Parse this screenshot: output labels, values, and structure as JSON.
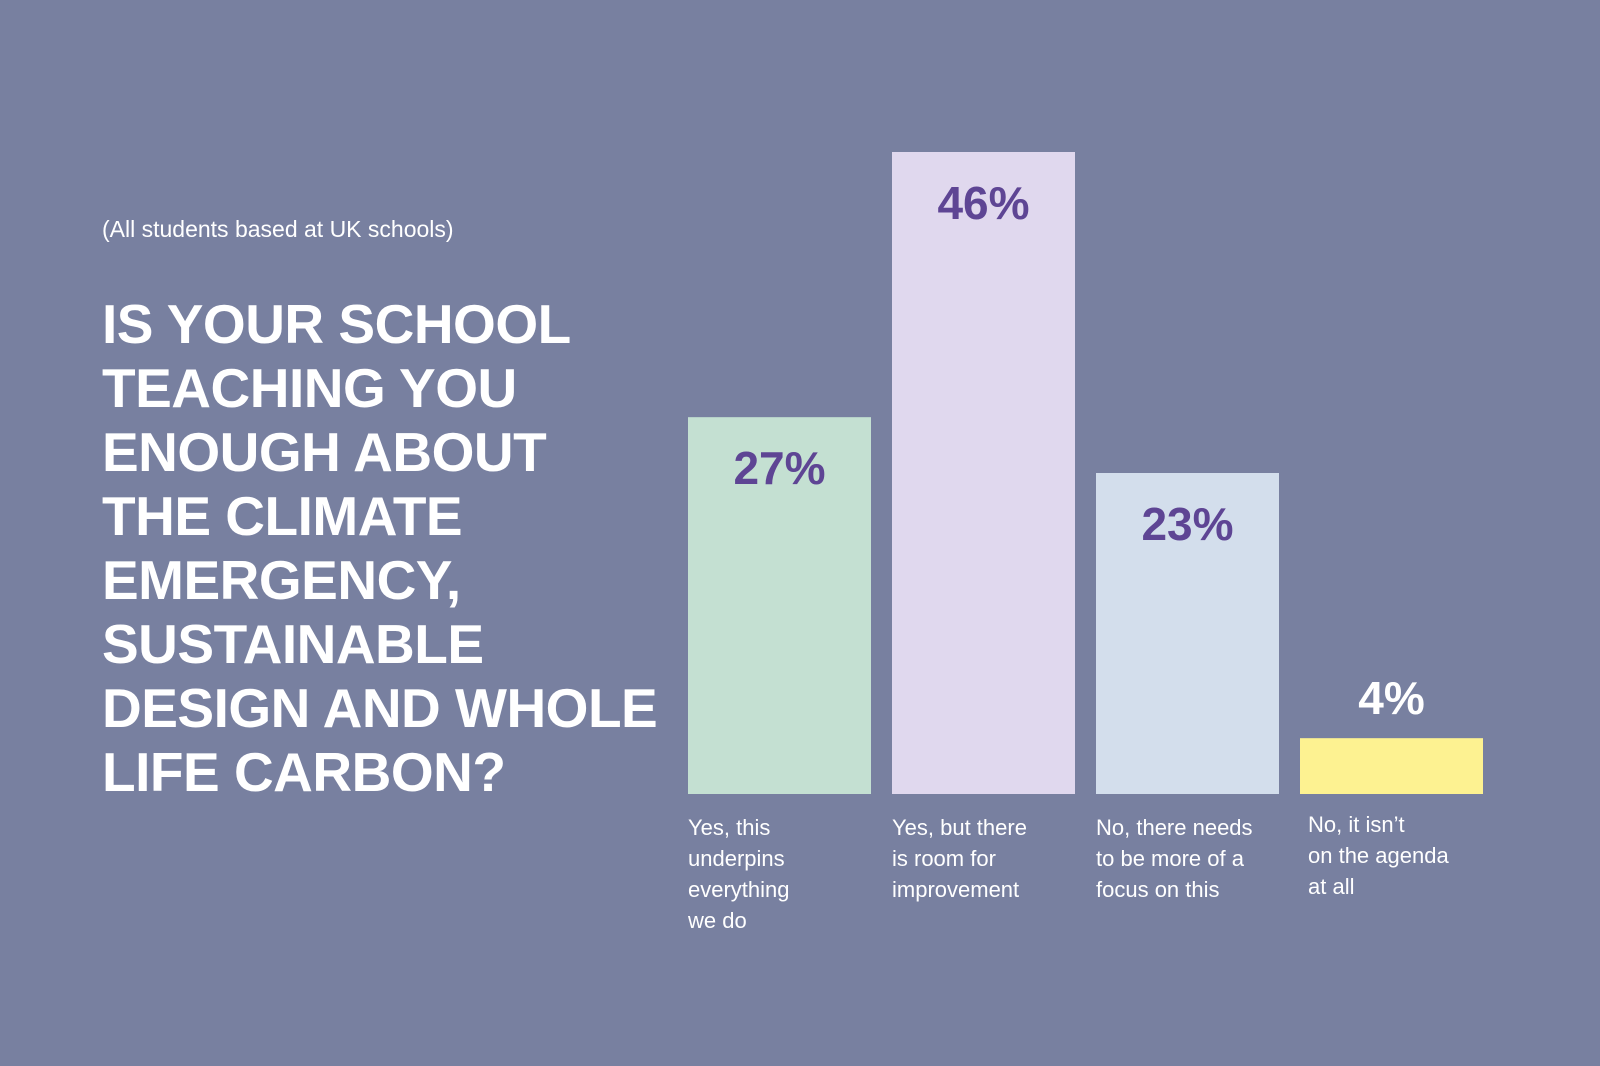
{
  "subtitle": "(All students based at UK schools)",
  "title_lines": [
    "IS YOUR SCHOOL",
    "TEACHING YOU",
    "ENOUGH ABOUT",
    "THE CLIMATE",
    "EMERGENCY,",
    "SUSTAINABLE",
    "DESIGN AND WHOLE",
    "LIFE CARBON?"
  ],
  "colors": {
    "background": "#7880a0",
    "value_label_inside": "#5e4594",
    "value_label_outside": "#ffffff",
    "category_label": "#ffffff"
  },
  "chart_data": {
    "type": "bar",
    "title": "IS YOUR SCHOOL TEACHING YOU ENOUGH ABOUT THE CLIMATE EMERGENCY, SUSTAINABLE DESIGN AND WHOLE LIFE CARBON?",
    "subtitle": "(All students based at UK schools)",
    "categories": [
      "Yes, this underpins everything we do",
      "Yes, but there is room for improvement",
      "No, there needs to be more of a focus on this",
      "No, it isn't on the agenda at all"
    ],
    "category_label_lines": [
      [
        "Yes, this",
        "underpins",
        "everything",
        "we do"
      ],
      [
        "Yes, but there",
        "is room for",
        "improvement"
      ],
      [
        "No, there needs",
        "to be more of a",
        "focus on this"
      ],
      [
        "No, it isn’t",
        "on the agenda",
        "at all"
      ]
    ],
    "values": [
      27,
      46,
      23,
      4
    ],
    "value_labels": [
      "27%",
      "46%",
      "23%",
      "4%"
    ],
    "bar_colors": [
      "#c4e0d2",
      "#e0d8ee",
      "#d3deec",
      "#fdf291"
    ],
    "unit": "%",
    "xlabel": "",
    "ylabel": "",
    "ylim": [
      0,
      46
    ],
    "grid": false,
    "legend": "none"
  }
}
